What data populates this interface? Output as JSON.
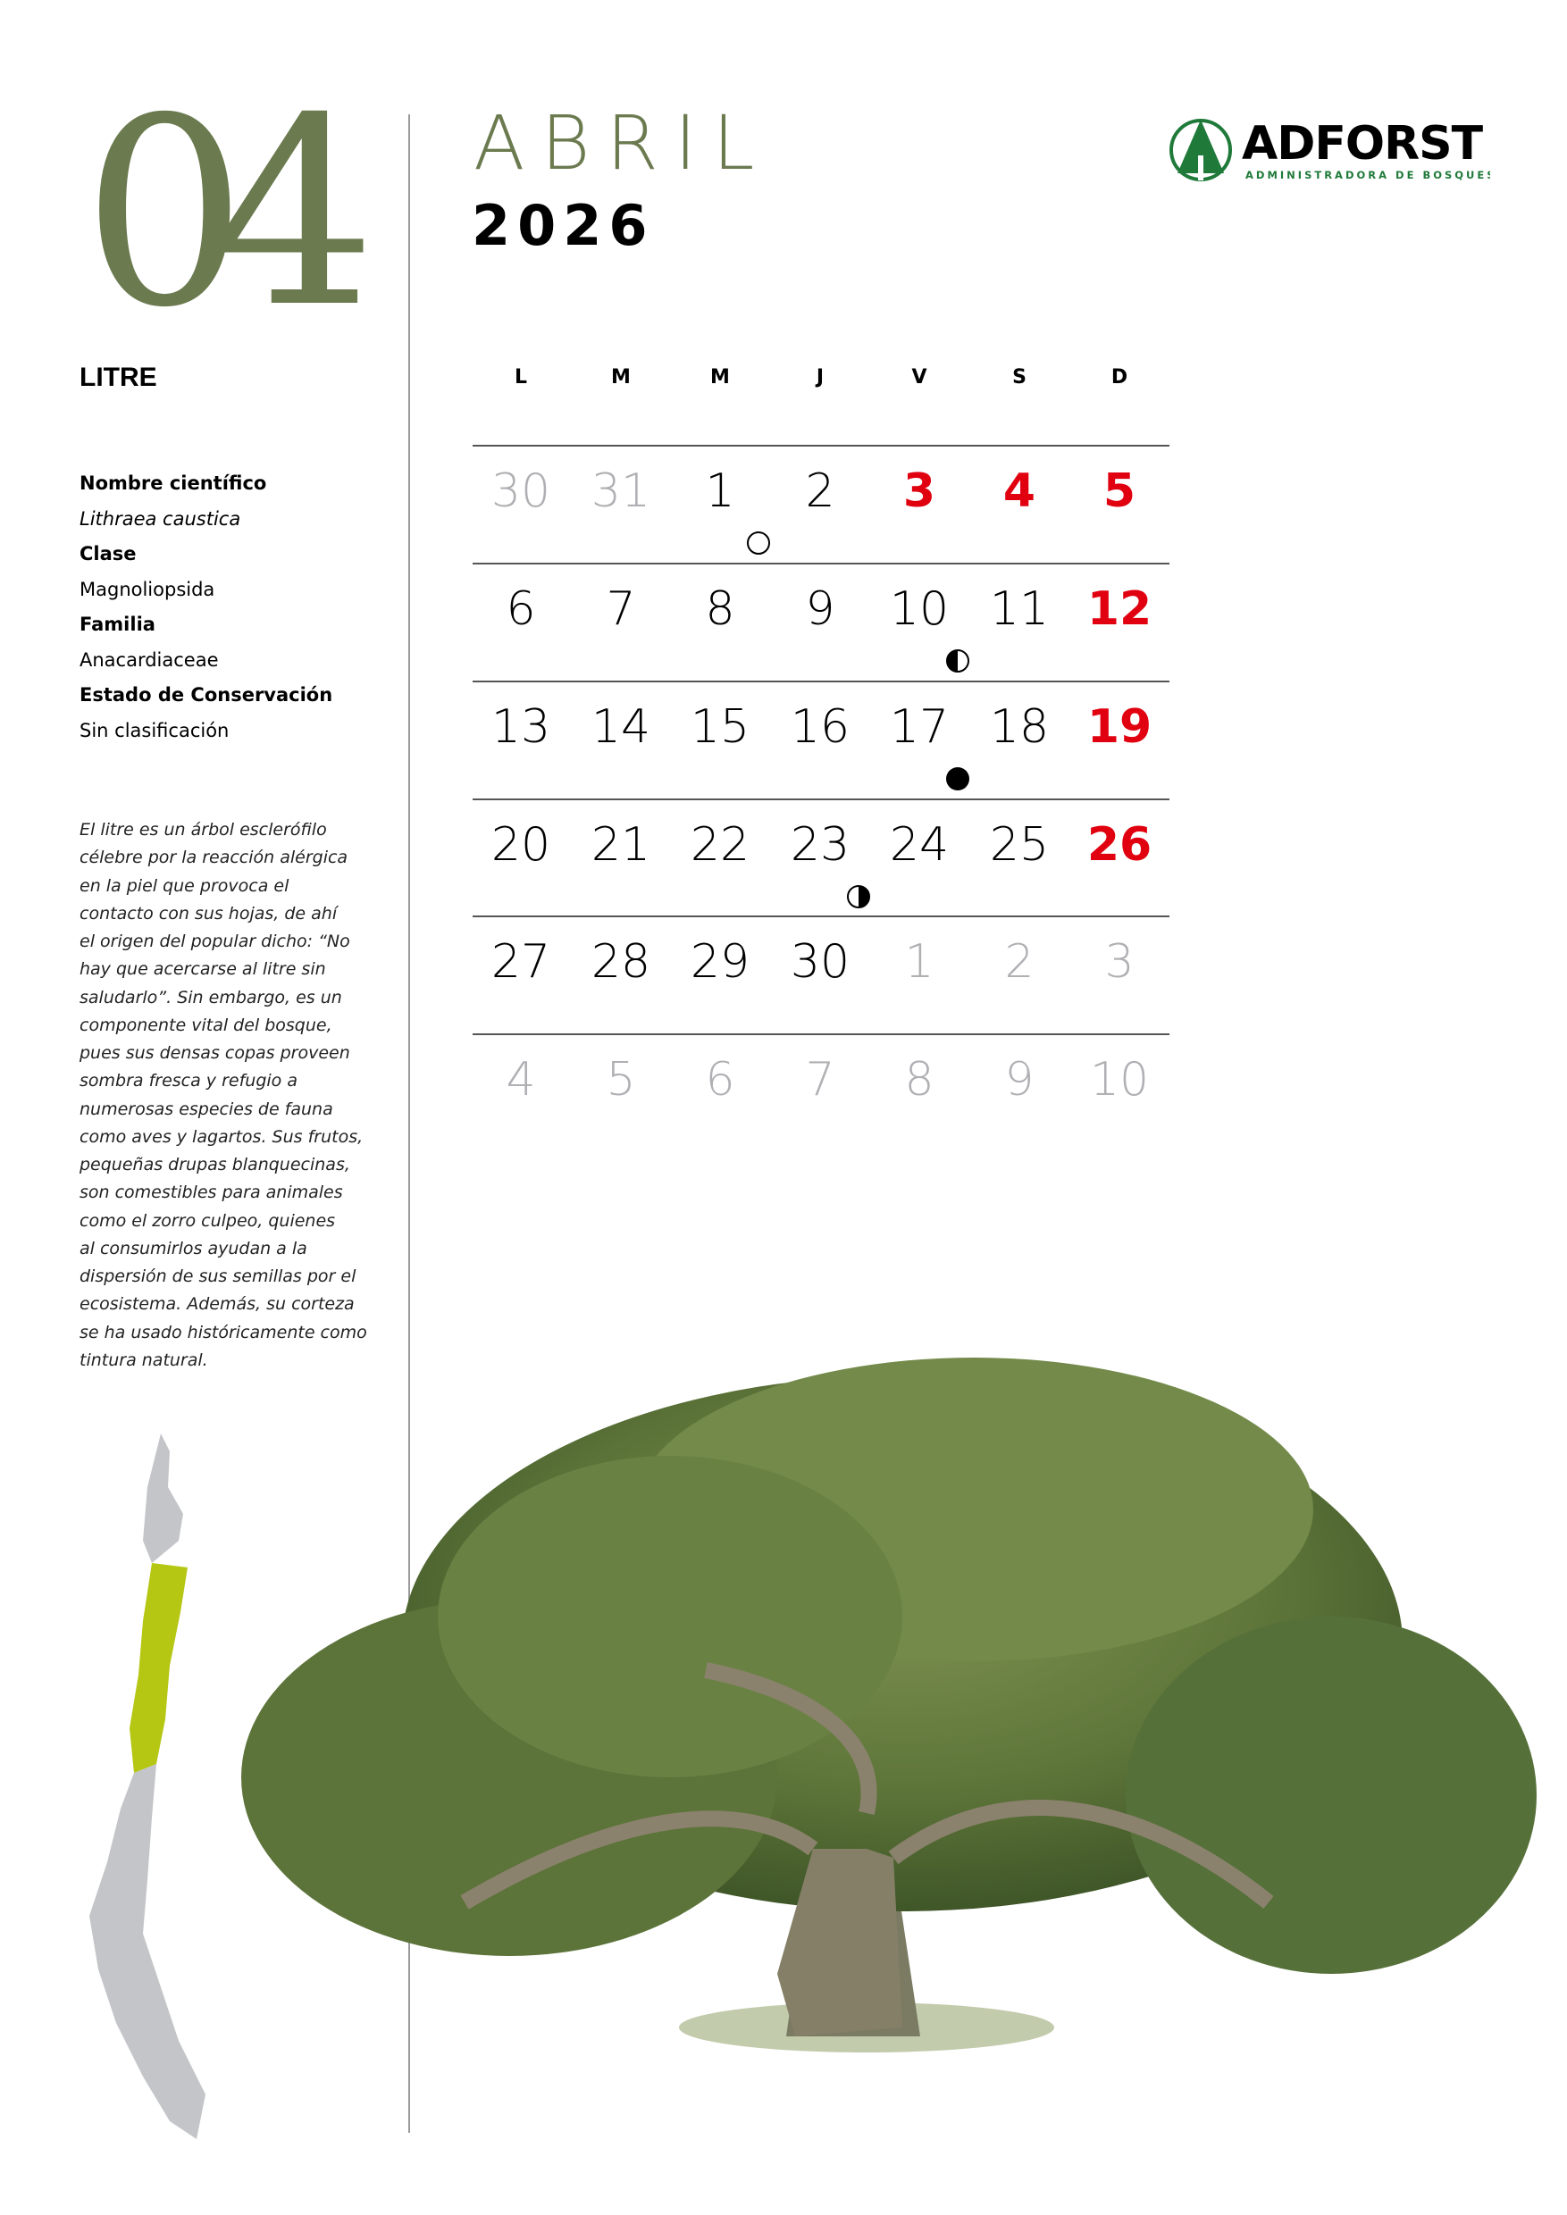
{
  "header": {
    "month_number": "04",
    "month_name": "ABRIL",
    "year": "2026"
  },
  "logo": {
    "name": "ADFORST",
    "tagline": "ADMINISTRADORA DE BOSQUES",
    "color": "#1f7a3a"
  },
  "species": {
    "common_name": "LITRE",
    "fields": [
      {
        "label": "Nombre científico",
        "value": "Lithraea caustica",
        "italic": true
      },
      {
        "label": "Clase",
        "value": "Magnoliopsida"
      },
      {
        "label": "Familia",
        "value": "Anacardiaceae"
      },
      {
        "label": "Estado de Conservación",
        "value": "Sin clasificación"
      }
    ],
    "description_lines": [
      "El litre es un árbol esclerófilo",
      "célebre por la reacción alérgica",
      "en la piel que provoca el",
      "contacto con sus hojas, de ahí",
      "el origen del popular dicho: “No",
      "hay que acercarse al litre sin",
      "saludarlo”. Sin embargo, es un",
      "componente vital del bosque,",
      "pues sus densas copas proveen",
      "sombra fresca y refugio a",
      "numerosas especies de fauna",
      "como aves y lagartos. Sus frutos,",
      "pequeñas drupas blanquecinas,",
      "son comestibles para animales",
      "como el zorro culpeo, quienes",
      "al consumirlos ayudan a la",
      "dispersión de sus semillas por el",
      "ecosistema. Además, su corteza",
      "se ha usado históricamente como",
      "tintura natural."
    ]
  },
  "calendar": {
    "weekdays": [
      "L",
      "M",
      "M",
      "J",
      "V",
      "S",
      "D"
    ],
    "colors": {
      "holiday": "#e0000f",
      "other_month": "#b0b0b4",
      "accent": "#6b7a4f"
    },
    "weeks": [
      [
        {
          "d": "30",
          "t": "other"
        },
        {
          "d": "31",
          "t": "other"
        },
        {
          "d": "1",
          "moon": "new-moon"
        },
        {
          "d": "2"
        },
        {
          "d": "3",
          "t": "red"
        },
        {
          "d": "4",
          "t": "red"
        },
        {
          "d": "5",
          "t": "red"
        }
      ],
      [
        {
          "d": "6"
        },
        {
          "d": "7"
        },
        {
          "d": "8"
        },
        {
          "d": "9"
        },
        {
          "d": "10",
          "moon": "first-quarter"
        },
        {
          "d": "11"
        },
        {
          "d": "12",
          "t": "red"
        }
      ],
      [
        {
          "d": "13"
        },
        {
          "d": "14"
        },
        {
          "d": "15"
        },
        {
          "d": "16"
        },
        {
          "d": "17",
          "moon": "full-moon"
        },
        {
          "d": "18"
        },
        {
          "d": "19",
          "t": "red"
        }
      ],
      [
        {
          "d": "20"
        },
        {
          "d": "21"
        },
        {
          "d": "22"
        },
        {
          "d": "23",
          "moon": "last-quarter"
        },
        {
          "d": "24"
        },
        {
          "d": "25"
        },
        {
          "d": "26",
          "t": "red"
        }
      ],
      [
        {
          "d": "27"
        },
        {
          "d": "28"
        },
        {
          "d": "29"
        },
        {
          "d": "30"
        },
        {
          "d": "1",
          "t": "other"
        },
        {
          "d": "2",
          "t": "other"
        },
        {
          "d": "3",
          "t": "other"
        }
      ],
      [
        {
          "d": "4",
          "t": "other"
        },
        {
          "d": "5",
          "t": "other"
        },
        {
          "d": "6",
          "t": "other"
        },
        {
          "d": "7",
          "t": "other"
        },
        {
          "d": "8",
          "t": "other"
        },
        {
          "d": "9",
          "t": "other"
        },
        {
          "d": "10",
          "t": "other"
        }
      ]
    ]
  }
}
